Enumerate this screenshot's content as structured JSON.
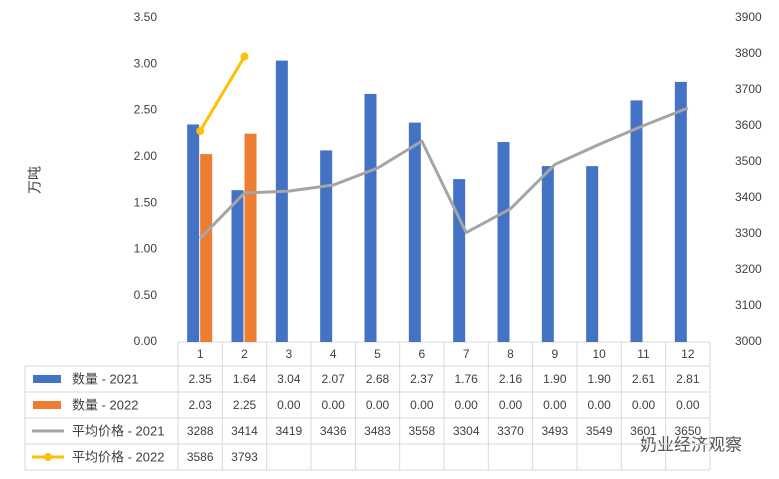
{
  "chart_data": {
    "type": "bar-line-table",
    "ylabel": "万吨",
    "watermark": "奶业经济观察",
    "categories": [
      "1",
      "2",
      "3",
      "4",
      "5",
      "6",
      "7",
      "8",
      "9",
      "10",
      "11",
      "12"
    ],
    "series": [
      {
        "name": "数量 - 2021",
        "type": "bar",
        "color": "#4472c4",
        "axis": "y",
        "values": [
          2.35,
          1.64,
          3.04,
          2.07,
          2.68,
          2.37,
          1.76,
          2.16,
          1.9,
          1.9,
          2.61,
          2.81
        ],
        "value_labels": [
          "2.35",
          "1.64",
          "3.04",
          "2.07",
          "2.68",
          "2.37",
          "1.76",
          "2.16",
          "1.90",
          "1.90",
          "2.61",
          "2.81"
        ]
      },
      {
        "name": "数量 - 2022",
        "type": "bar",
        "color": "#ed7d31",
        "axis": "y",
        "values": [
          2.03,
          2.25,
          0,
          0,
          0,
          0,
          0,
          0,
          0,
          0,
          0,
          0
        ],
        "value_labels": [
          "2.03",
          "2.25",
          "0.00",
          "0.00",
          "0.00",
          "0.00",
          "0.00",
          "0.00",
          "0.00",
          "0.00",
          "0.00",
          "0.00"
        ]
      },
      {
        "name": "平均价格 - 2021",
        "type": "line",
        "color": "#a5a5a5",
        "axis": "y2",
        "markers": false,
        "values": [
          3288,
          3414,
          3419,
          3436,
          3483,
          3558,
          3304,
          3370,
          3493,
          3549,
          3601,
          3650
        ]
      },
      {
        "name": "平均价格 - 2022",
        "type": "line",
        "color": "#ffc000",
        "axis": "y2",
        "markers": true,
        "values": [
          3586,
          3793,
          null,
          null,
          null,
          null,
          null,
          null,
          null,
          null,
          null,
          null
        ]
      }
    ],
    "ylim": [
      0,
      3.5
    ],
    "yticks": [
      {
        "value": 0,
        "label": "0.00"
      },
      {
        "value": 0.5,
        "label": "0.50"
      },
      {
        "value": 1,
        "label": "1.00"
      },
      {
        "value": 1.5,
        "label": "1.50"
      },
      {
        "value": 2,
        "label": "2.00"
      },
      {
        "value": 2.5,
        "label": "2.50"
      },
      {
        "value": 3,
        "label": "3.00"
      },
      {
        "value": 3.5,
        "label": "3.50"
      }
    ],
    "y2lim": [
      3000,
      3900
    ],
    "y2ticks": [
      3000,
      3100,
      3200,
      3300,
      3400,
      3500,
      3600,
      3700,
      3800,
      3900
    ],
    "grid": false
  }
}
